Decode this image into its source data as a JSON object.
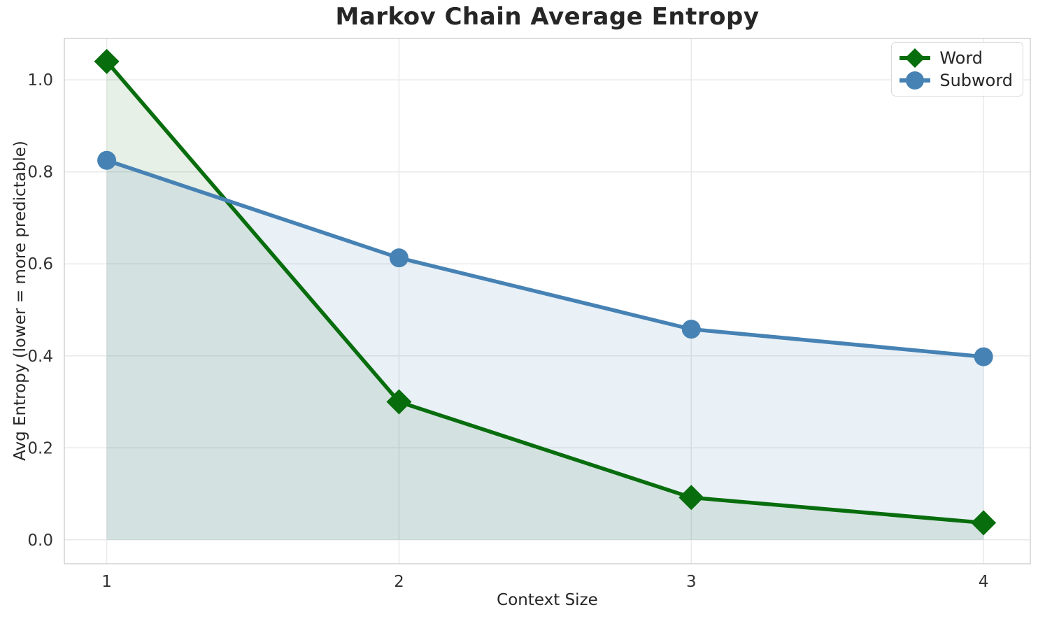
{
  "chart_data": {
    "type": "line",
    "title": "Markov Chain Average Entropy",
    "xlabel": "Context Size",
    "ylabel": "Avg Entropy (lower = more predictable)",
    "x": [
      1,
      2,
      3,
      4
    ],
    "series": [
      {
        "name": "Word",
        "values": [
          1.04,
          0.3,
          0.092,
          0.037
        ],
        "color": "#086d0d",
        "marker": "diamond",
        "area_fill": true,
        "fill_opacity": 0.1
      },
      {
        "name": "Subword",
        "values": [
          0.825,
          0.613,
          0.458,
          0.398
        ],
        "color": "#4682b4",
        "marker": "circle",
        "area_fill": true,
        "fill_opacity": 0.12
      }
    ],
    "xtick_values": [
      1,
      2,
      3,
      4
    ],
    "xtick_labels": [
      "1",
      "2",
      "3",
      "4"
    ],
    "ytick_values": [
      0.0,
      0.2,
      0.4,
      0.6,
      0.8,
      1.0
    ],
    "ytick_labels": [
      "0.0",
      "0.2",
      "0.4",
      "0.6",
      "0.8",
      "1.0"
    ],
    "xlim": [
      0.855,
      4.16
    ],
    "ylim": [
      -0.052,
      1.09
    ],
    "grid": true,
    "legend_position": "upper right"
  },
  "style": {
    "title_color": "#262626",
    "tick_color": "#333333",
    "grid_color": "#e9e9e9",
    "spine_color": "#d2d2d2",
    "fill_baseline": 0
  }
}
